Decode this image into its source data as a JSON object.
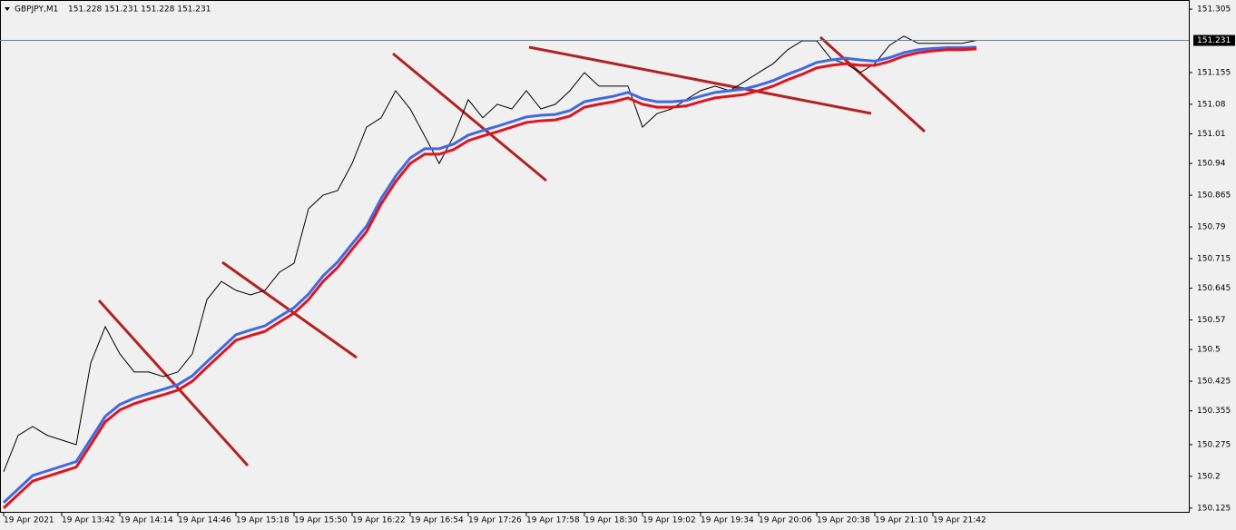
{
  "chart_data": {
    "type": "line",
    "title": "GBPJPY,M1",
    "quote": "151.228 151.231 151.228 151.231",
    "current_price": 151.231,
    "categories": [
      "19 Apr 2021",
      null,
      null,
      null,
      "19 Apr 13:42",
      null,
      null,
      null,
      "19 Apr 14:14",
      null,
      null,
      null,
      "19 Apr 14:46",
      null,
      null,
      null,
      "19 Apr 15:18",
      null,
      null,
      null,
      "19 Apr 15:50",
      null,
      null,
      null,
      "19 Apr 16:22",
      null,
      null,
      null,
      "19 Apr 16:54",
      null,
      null,
      null,
      "19 Apr 17:26",
      null,
      null,
      null,
      "19 Apr 17:58",
      null,
      null,
      null,
      "19 Apr 18:30",
      null,
      null,
      null,
      "19 Apr 19:02",
      null,
      null,
      null,
      "19 Apr 19:34",
      null,
      null,
      null,
      "19 Apr 20:06",
      null,
      null,
      null,
      "19 Apr 20:38",
      null,
      null,
      null,
      "19 Apr 21:10",
      null,
      null,
      null,
      "19 Apr 21:42",
      null,
      null,
      null
    ],
    "series": [
      {
        "color": "#000000",
        "values": [
          150.211,
          150.297,
          150.318,
          150.297,
          150.286,
          150.275,
          150.468,
          150.554,
          150.49,
          150.447,
          150.447,
          150.436,
          150.447,
          150.49,
          150.618,
          150.661,
          150.64,
          150.629,
          150.64,
          150.683,
          150.704,
          150.833,
          150.865,
          150.876,
          150.94,
          151.026,
          151.048,
          151.112,
          151.069,
          151.005,
          150.94,
          151.005,
          151.091,
          151.048,
          151.08,
          151.069,
          151.112,
          151.069,
          151.08,
          151.112,
          151.155,
          151.123,
          151.123,
          151.123,
          151.026,
          151.058,
          151.069,
          151.091,
          151.112,
          151.123,
          151.112,
          151.133,
          151.155,
          151.176,
          151.209,
          151.23,
          151.23,
          151.187,
          151.176,
          151.155,
          151.176,
          151.219,
          151.241,
          151.224,
          151.224,
          151.224,
          151.224,
          151.231
        ]
      },
      {
        "color": "#4169e1",
        "values": [
          150.138,
          150.17,
          150.202,
          150.213,
          150.224,
          150.235,
          150.288,
          150.342,
          150.37,
          150.385,
          150.396,
          150.406,
          150.417,
          150.438,
          150.471,
          150.503,
          150.535,
          150.546,
          150.556,
          150.578,
          150.599,
          150.631,
          150.674,
          150.707,
          150.75,
          150.792,
          150.857,
          150.91,
          150.953,
          150.975,
          150.975,
          150.986,
          151.007,
          151.018,
          151.028,
          151.039,
          151.05,
          151.054,
          151.056,
          151.065,
          151.086,
          151.093,
          151.099,
          151.108,
          151.093,
          151.086,
          151.086,
          151.089,
          151.099,
          151.108,
          151.112,
          151.116,
          151.125,
          151.136,
          151.151,
          151.164,
          151.179,
          151.185,
          151.189,
          151.185,
          151.182,
          151.19,
          151.202,
          151.209,
          151.212,
          151.214,
          151.214,
          151.215
        ]
      },
      {
        "color": "#e0141e",
        "values": [
          150.125,
          150.157,
          150.189,
          150.2,
          150.211,
          150.222,
          150.275,
          150.329,
          150.357,
          150.372,
          150.383,
          150.393,
          150.404,
          150.425,
          150.458,
          150.49,
          150.522,
          150.533,
          150.543,
          150.565,
          150.586,
          150.618,
          150.661,
          150.694,
          150.737,
          150.779,
          150.844,
          150.897,
          150.94,
          150.962,
          150.962,
          150.973,
          150.994,
          151.005,
          151.015,
          151.026,
          151.037,
          151.041,
          151.043,
          151.052,
          151.073,
          151.08,
          151.086,
          151.095,
          151.08,
          151.073,
          151.073,
          151.076,
          151.086,
          151.095,
          151.099,
          151.103,
          151.112,
          151.123,
          151.138,
          151.151,
          151.166,
          151.172,
          151.176,
          151.172,
          151.172,
          151.181,
          151.194,
          151.202,
          151.206,
          151.209,
          151.209,
          151.211
        ]
      }
    ],
    "ylim": [
      150.114,
      151.318
    ],
    "yticks": [
      151.305,
      151.155,
      151.08,
      151.01,
      150.94,
      150.865,
      150.79,
      150.715,
      150.645,
      150.57,
      150.5,
      150.425,
      150.355,
      150.275,
      150.2,
      150.125
    ],
    "grid": false
  }
}
